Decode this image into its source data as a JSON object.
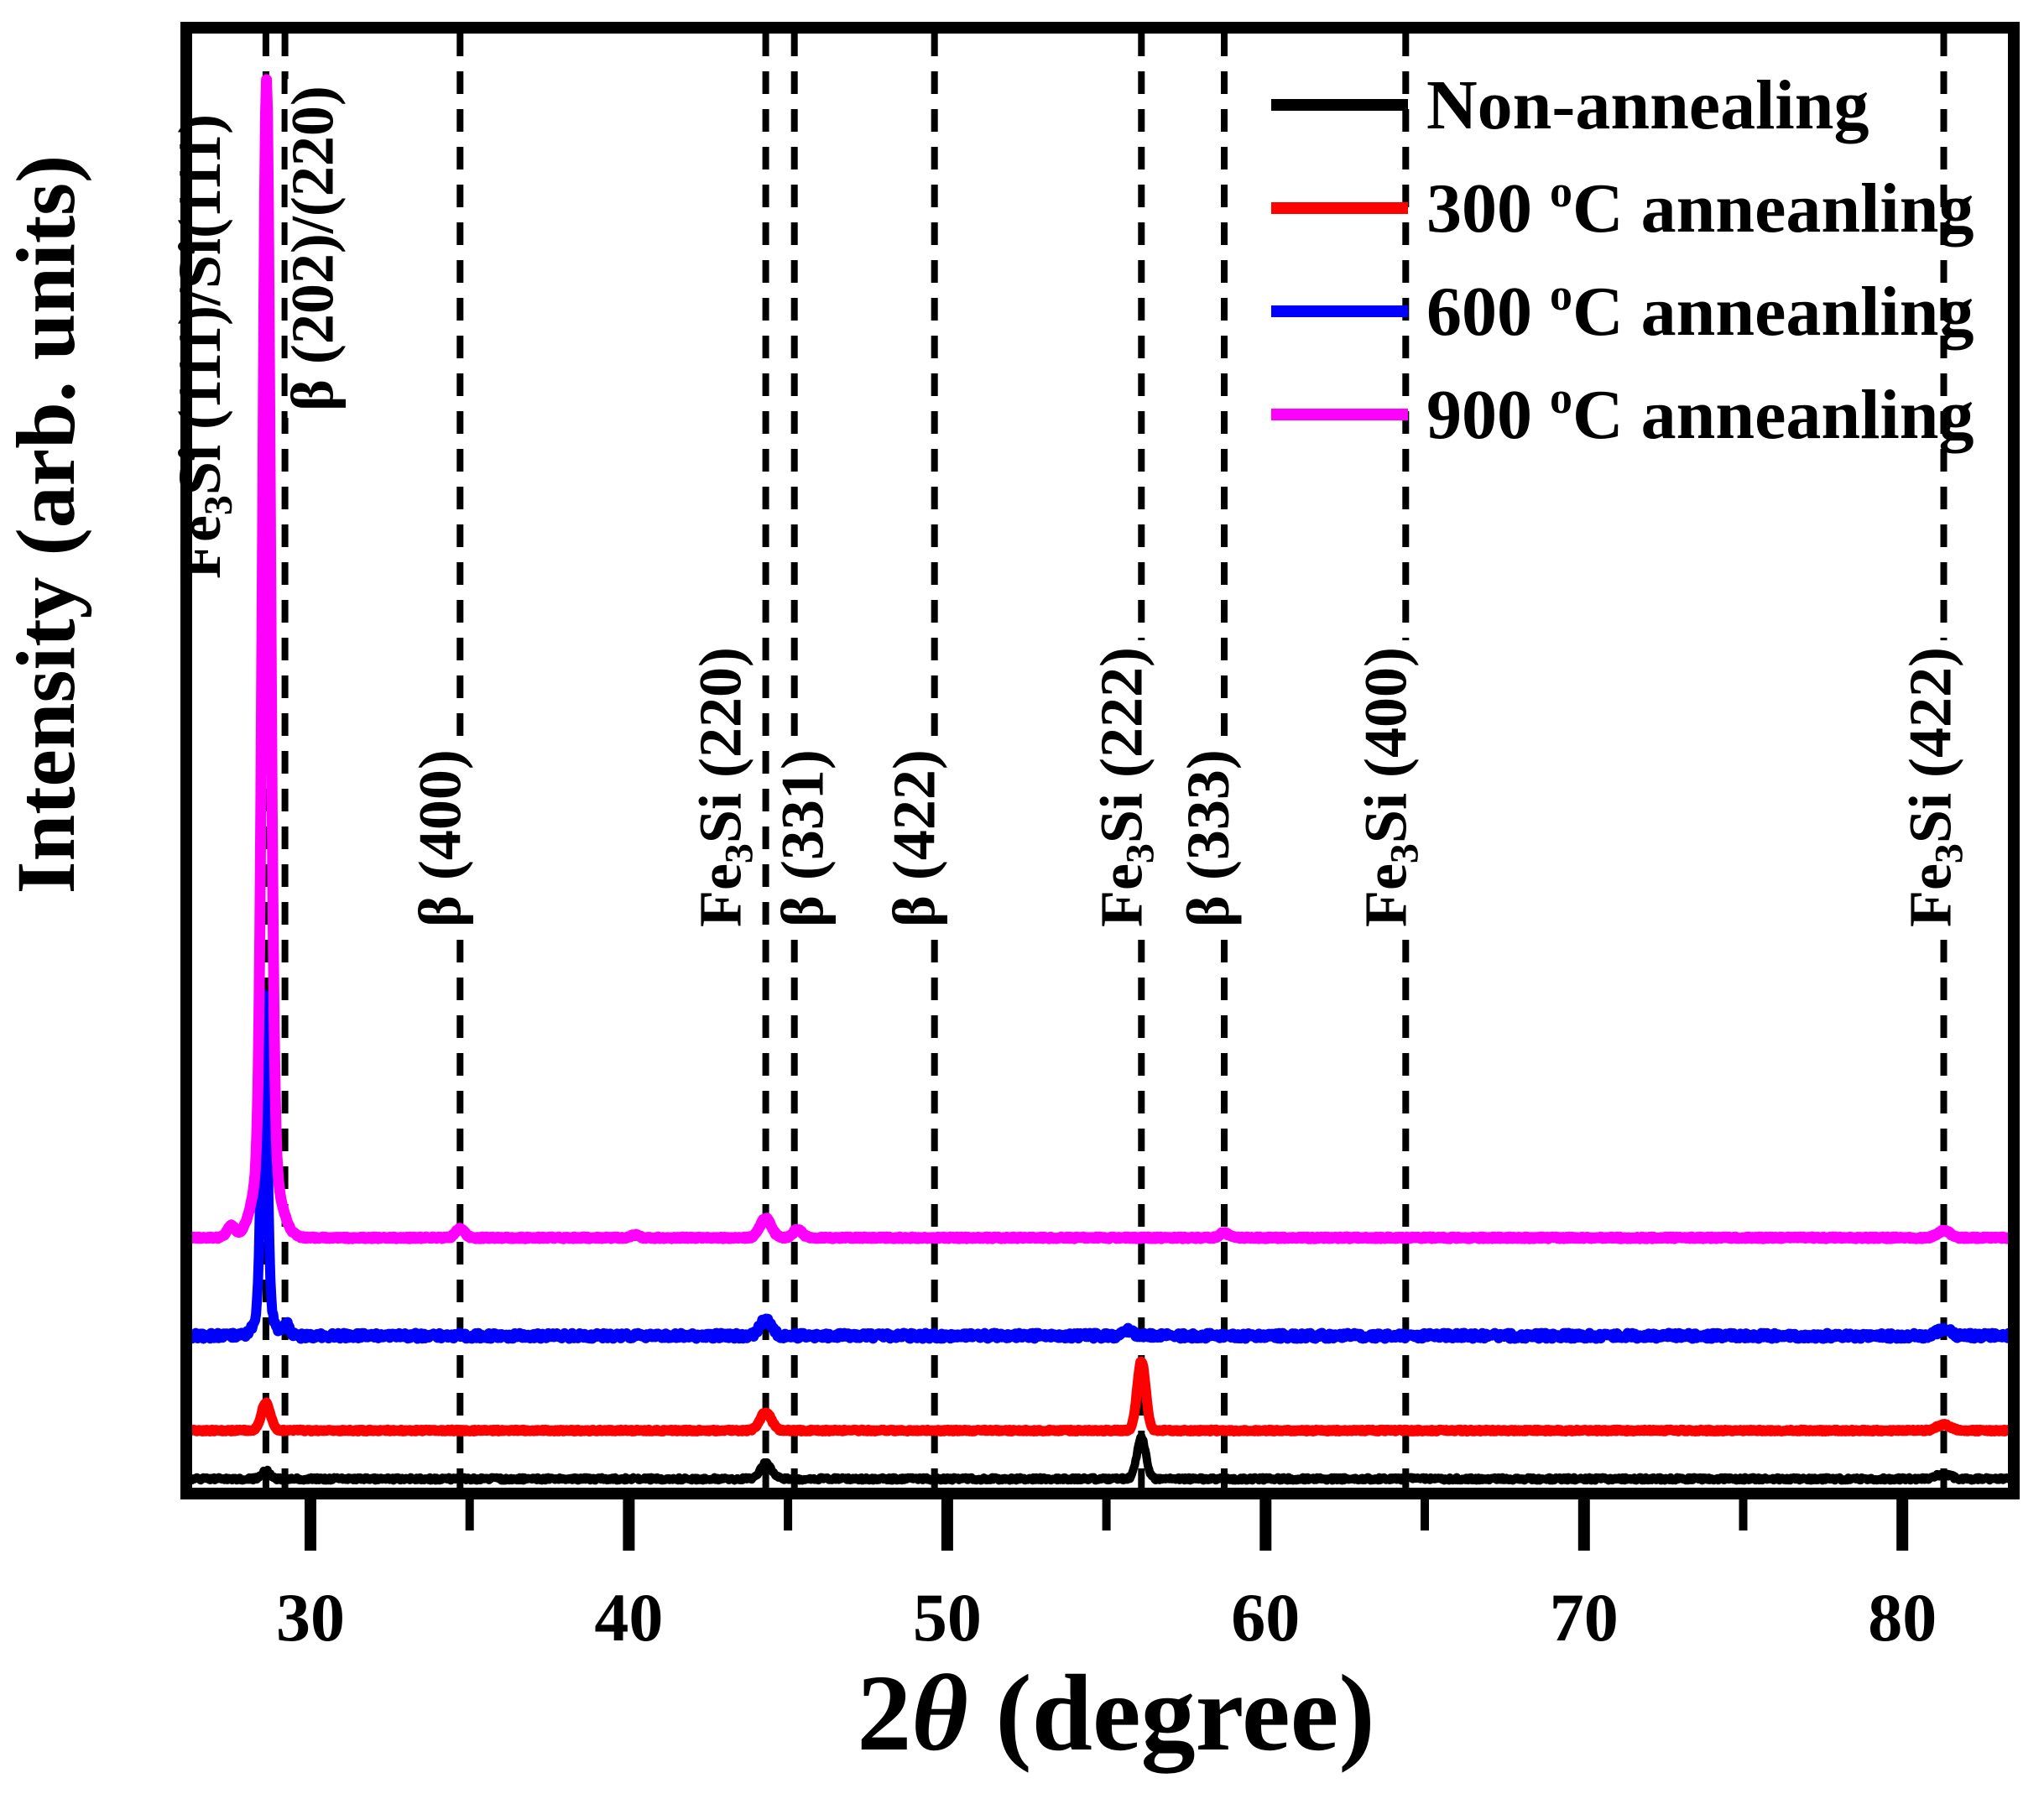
{
  "figure": {
    "ylabel": "Intensity (arb. units)",
    "xlabel": {
      "pre": "2",
      "theta": "θ",
      "post": " (degree)"
    }
  },
  "axis": {
    "x_min": 26.1,
    "x_max": 83.5,
    "major_ticks": [
      30,
      40,
      50,
      60,
      70,
      80
    ],
    "minor_ticks": [
      35,
      45,
      55,
      65,
      75
    ]
  },
  "legend": {
    "items": [
      {
        "color": "#000000",
        "pre": "Non-annealing",
        "sup": "",
        "post": ""
      },
      {
        "color": "#FF0000",
        "pre": "300 ",
        "sup": "o",
        "post": "C anneanling"
      },
      {
        "color": "#0000FF",
        "pre": "600 ",
        "sup": "o",
        "post": "C anneanling"
      },
      {
        "color": "#FF00FF",
        "pre": "900 ",
        "sup": "o",
        "post": "C anneanling"
      }
    ]
  },
  "peak_markers": [
    {
      "two_theta": 28.6,
      "label": "Fe3Si (111)/Si(111)",
      "pre": "Fe",
      "sub": "3",
      "post": "Si (111)/Si(111)",
      "bottom": 690,
      "dx": -55
    },
    {
      "two_theta": 29.2,
      "label": "β (202)/(220)",
      "pre": "β (202)/(220)",
      "sub": "",
      "post": "",
      "bottom": 490,
      "dx": 57
    },
    {
      "two_theta": 34.7,
      "label": "β (400)",
      "pre": "β (400)",
      "sub": "",
      "post": "",
      "bottom": 1105,
      "dx": 0
    },
    {
      "two_theta": 44.3,
      "label": "Fe3Si (220)",
      "pre": "Fe",
      "sub": "3",
      "post": "Si (220)",
      "bottom": 1105,
      "dx": -30
    },
    {
      "two_theta": 45.2,
      "label": "β (331)",
      "pre": "β (331)",
      "sub": "",
      "post": "",
      "bottom": 1105,
      "dx": 34
    },
    {
      "two_theta": 49.6,
      "label": "β (422)",
      "pre": "β (422)",
      "sub": "",
      "post": "",
      "bottom": 1105,
      "dx": 0
    },
    {
      "two_theta": 56.1,
      "label": "Fe3Si (222)",
      "pre": "Fe",
      "sub": "3",
      "post": "Si (222)",
      "bottom": 1105,
      "dx": 0
    },
    {
      "two_theta": 58.7,
      "label": "β (333)",
      "pre": "β (333)",
      "sub": "",
      "post": "",
      "bottom": 1105,
      "dx": 5
    },
    {
      "two_theta": 64.4,
      "label": "Fe3Si (400)",
      "pre": "Fe",
      "sub": "3",
      "post": "Si (400)",
      "bottom": 1105,
      "dx": 0
    },
    {
      "two_theta": 81.3,
      "label": "Fe3Si (422)",
      "pre": "Fe",
      "sub": "3",
      "post": "Si (422)",
      "bottom": 1105,
      "dx": 8
    }
  ],
  "chart_data": {
    "type": "line",
    "title": "",
    "xlabel": "2θ (degree)",
    "ylabel": "Intensity (arb. units)",
    "xlim": [
      26.1,
      83.5
    ],
    "x_ticks": [
      30,
      40,
      50,
      60,
      70,
      80
    ],
    "grid": false,
    "legend_position": "top-right",
    "y_units": "arbitrary, curves vertically offset",
    "series": [
      {
        "name": "Non-annealing",
        "color": "#000000",
        "baseline_offset": 0.01,
        "noise": 0.0022,
        "line_width": 10,
        "peaks": [
          {
            "center": 28.6,
            "height": 0.0055,
            "width": 0.18
          },
          {
            "center": 44.3,
            "height": 0.0105,
            "width": 0.25
          },
          {
            "center": 56.1,
            "height": 0.028,
            "width": 0.2
          },
          {
            "center": 81.3,
            "height": 0.0035,
            "width": 0.3
          }
        ]
      },
      {
        "name": "300 °C anneanling",
        "color": "#FF0000",
        "baseline_offset": 0.043,
        "noise": 0.0012,
        "line_width": 12,
        "peaks": [
          {
            "center": 28.6,
            "height": 0.019,
            "width": 0.2
          },
          {
            "center": 44.3,
            "height": 0.0125,
            "width": 0.25
          },
          {
            "center": 56.1,
            "height": 0.0475,
            "width": 0.19
          },
          {
            "center": 81.3,
            "height": 0.004,
            "width": 0.3
          }
        ]
      },
      {
        "name": "600 °C anneanling",
        "color": "#0000FF",
        "baseline_offset": 0.1076,
        "noise": 0.004,
        "line_width": 12,
        "peaks": [
          {
            "center": 28.55,
            "height": 0.215,
            "width": 0.13
          },
          {
            "center": 28.55,
            "height": 0.02,
            "width": 0.35
          },
          {
            "center": 29.25,
            "height": 0.0085,
            "width": 0.14
          },
          {
            "center": 44.3,
            "height": 0.0115,
            "width": 0.25
          },
          {
            "center": 55.7,
            "height": 0.0035,
            "width": 0.2
          },
          {
            "center": 81.3,
            "height": 0.0048,
            "width": 0.28
          }
        ]
      },
      {
        "name": "900 °C anneanling",
        "color": "#FF00FF",
        "baseline_offset": 0.1745,
        "noise": 0.0012,
        "line_width": 13,
        "peaks": [
          {
            "center": 27.5,
            "height": 0.008,
            "width": 0.18
          },
          {
            "center": 28.62,
            "height": 0.73,
            "width": 0.17
          },
          {
            "center": 28.62,
            "height": 0.06,
            "width": 0.5
          },
          {
            "center": 34.7,
            "height": 0.006,
            "width": 0.2
          },
          {
            "center": 40.2,
            "height": 0.002,
            "width": 0.15
          },
          {
            "center": 44.3,
            "height": 0.0133,
            "width": 0.25
          },
          {
            "center": 45.3,
            "height": 0.0057,
            "width": 0.2
          },
          {
            "center": 58.7,
            "height": 0.0035,
            "width": 0.2
          },
          {
            "center": 81.3,
            "height": 0.0048,
            "width": 0.28
          }
        ]
      }
    ]
  }
}
